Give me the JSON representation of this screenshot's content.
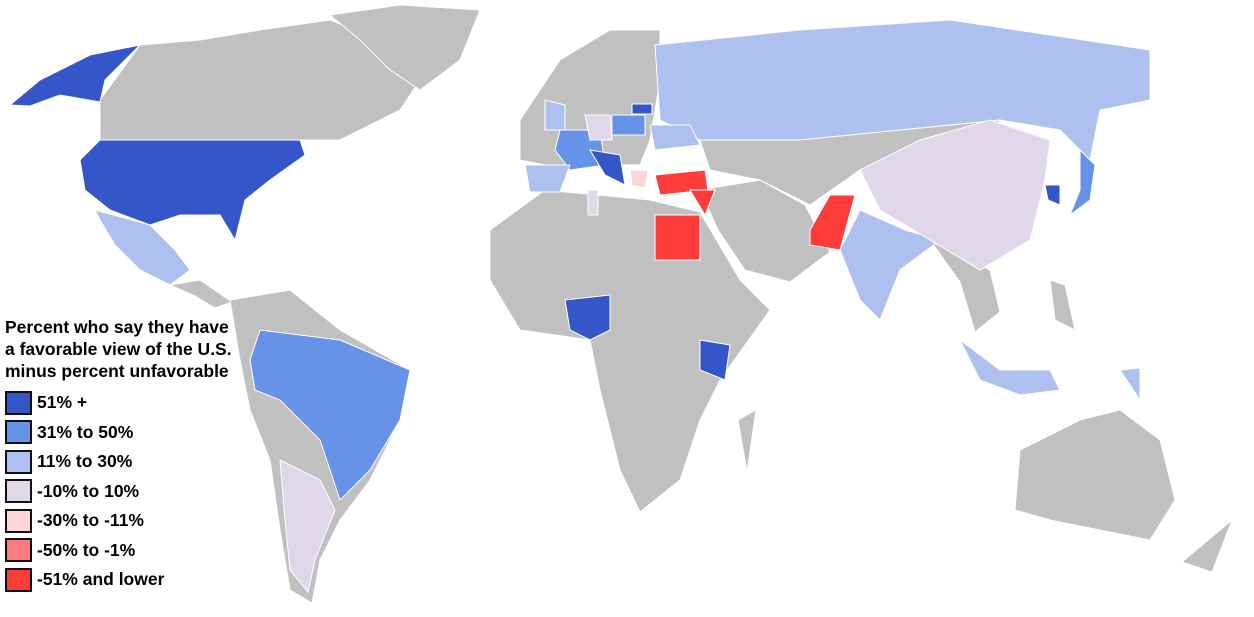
{
  "map": {
    "land_color": "#c0c0c0",
    "legend": {
      "title_lines": [
        "Percent who say they have",
        "a favorable view of the U.S.",
        "minus percent unfavorable"
      ],
      "categories": [
        {
          "label": "51% +",
          "color": "#3456c8"
        },
        {
          "label": "31% to 50%",
          "color": "#6692e8"
        },
        {
          "label": "11% to 30%",
          "color": "#aec0f0"
        },
        {
          "label": "-10% to 10%",
          "color": "#e0d8ea"
        },
        {
          "label": "-30% to -11%",
          "color": "#ffd6d6"
        },
        {
          "label": "-50% to -1%",
          "color": "#ff7b7b"
        },
        {
          "label": "-51% and lower",
          "color": "#ff3c3c"
        }
      ]
    }
  }
}
